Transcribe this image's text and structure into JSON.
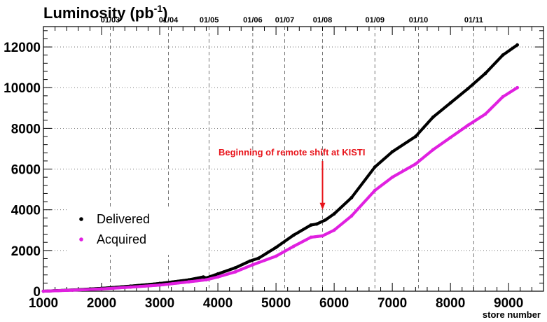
{
  "chart_data": {
    "type": "scatter",
    "title": "Luminosity (pb",
    "title_sup": "-1",
    "title_close": ")",
    "xlabel": "store number",
    "ylabel": "Luminosity (pb^-1)",
    "xlim": [
      1000,
      9600
    ],
    "ylim": [
      0,
      13000
    ],
    "x_ticks": [
      1000,
      2000,
      3000,
      4000,
      5000,
      6000,
      7000,
      8000,
      9000
    ],
    "x_tick_labels": [
      "1000",
      "2000",
      "3000",
      "4000",
      "5000",
      "6000",
      "7000",
      "8000",
      "9000"
    ],
    "y_ticks": [
      0,
      2000,
      4000,
      6000,
      8000,
      10000,
      12000
    ],
    "y_tick_labels": [
      "0",
      "2000",
      "4000",
      "6000",
      "8000",
      "10000",
      "12000"
    ],
    "horizontal_grid": true,
    "date_markers": [
      {
        "label": "01/03",
        "x": 2150
      },
      {
        "label": "01/04",
        "x": 3150
      },
      {
        "label": "01/05",
        "x": 3850
      },
      {
        "label": "01/06",
        "x": 4600
      },
      {
        "label": "01/07",
        "x": 5150
      },
      {
        "label": "01/08",
        "x": 5800
      },
      {
        "label": "01/09",
        "x": 6700
      },
      {
        "label": "01/10",
        "x": 7450
      },
      {
        "label": "01/11",
        "x": 8400
      }
    ],
    "series": [
      {
        "name": "Delivered",
        "color": "#000000",
        "x": [
          1000,
          1500,
          2000,
          2500,
          3000,
          3500,
          3750,
          3800,
          4000,
          4300,
          4550,
          4700,
          5000,
          5300,
          5600,
          5700,
          5850,
          6000,
          6300,
          6700,
          7000,
          7400,
          7700,
          8000,
          8300,
          8600,
          8900,
          9150
        ],
        "values": [
          0,
          60,
          140,
          250,
          380,
          560,
          700,
          650,
          850,
          1150,
          1480,
          1620,
          2150,
          2750,
          3250,
          3300,
          3500,
          3800,
          4600,
          6100,
          6850,
          7600,
          8550,
          9250,
          9950,
          10700,
          11600,
          12100
        ]
      },
      {
        "name": "Acquired",
        "color": "#e020e0",
        "x": [
          1000,
          1500,
          2000,
          2500,
          3000,
          3500,
          3800,
          4000,
          4300,
          4600,
          5000,
          5300,
          5600,
          5800,
          6000,
          6300,
          6700,
          7000,
          7400,
          7700,
          8000,
          8300,
          8600,
          8900,
          9150
        ],
        "values": [
          0,
          50,
          110,
          200,
          300,
          460,
          560,
          700,
          950,
          1300,
          1720,
          2200,
          2650,
          2720,
          3000,
          3700,
          4950,
          5600,
          6250,
          6950,
          7550,
          8150,
          8700,
          9550,
          10000
        ]
      }
    ],
    "annotation": {
      "text": "Beginning of remote shift at KISTI",
      "arrow_x": 5800,
      "arrow_y_start": 6400,
      "arrow_y_end": 4000,
      "color": "#e8141b"
    },
    "legend_position": "left"
  }
}
